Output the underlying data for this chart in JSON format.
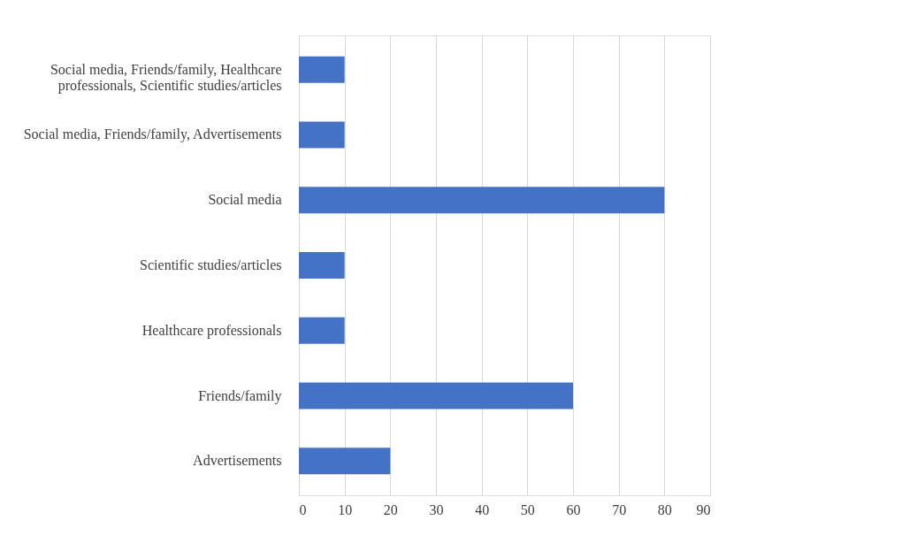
{
  "chart_data": {
    "type": "bar",
    "orientation": "horizontal",
    "categories": [
      "Social media, Friends/family, Healthcare professionals, Scientific studies/articles",
      "Social media, Friends/family, Advertisements",
      "Social media",
      "Scientific studies/articles",
      "Healthcare professionals",
      "Friends/family",
      "Advertisements"
    ],
    "values": [
      10,
      10,
      80,
      10,
      10,
      60,
      20
    ],
    "color": "#4472c4",
    "xlim": [
      0,
      90
    ],
    "xticks": [
      0,
      10,
      20,
      30,
      40,
      50,
      60,
      70,
      80,
      90
    ],
    "grid": "x"
  }
}
